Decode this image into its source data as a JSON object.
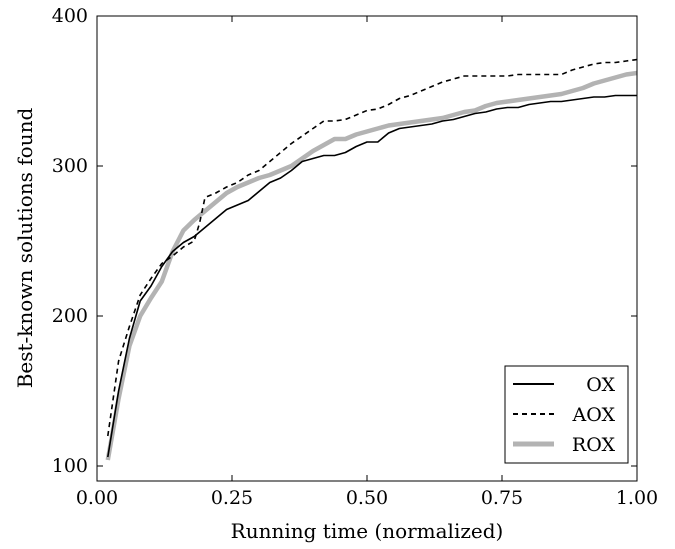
{
  "chart_data": {
    "type": "line",
    "xlabel": "Running time (normalized)",
    "ylabel": "Best-known solutions found",
    "xlim": [
      0,
      1
    ],
    "ylim": [
      90,
      400
    ],
    "x_ticks": [
      "0.00",
      "0.25",
      "0.50",
      "0.75",
      "1.00"
    ],
    "y_ticks": [
      "100",
      "200",
      "300",
      "400"
    ],
    "grid": false,
    "legend_position": "bottom-right",
    "series": [
      {
        "name": "OX",
        "style": "solid",
        "color": "#000000",
        "x": [
          0.02,
          0.04,
          0.06,
          0.08,
          0.1,
          0.12,
          0.14,
          0.16,
          0.18,
          0.2,
          0.22,
          0.24,
          0.26,
          0.28,
          0.3,
          0.32,
          0.34,
          0.36,
          0.38,
          0.4,
          0.42,
          0.44,
          0.46,
          0.48,
          0.5,
          0.52,
          0.54,
          0.56,
          0.58,
          0.6,
          0.62,
          0.64,
          0.66,
          0.68,
          0.7,
          0.72,
          0.74,
          0.76,
          0.78,
          0.8,
          0.82,
          0.84,
          0.86,
          0.88,
          0.9,
          0.92,
          0.94,
          0.96,
          0.98,
          1.0
        ],
        "values": [
          106,
          150,
          185,
          210,
          220,
          233,
          243,
          249,
          253,
          259,
          265,
          271,
          274,
          277,
          283,
          289,
          292,
          297,
          303,
          305,
          307,
          307,
          309,
          313,
          316,
          316,
          322,
          325,
          326,
          327,
          328,
          330,
          331,
          333,
          335,
          336,
          338,
          339,
          339,
          341,
          342,
          343,
          343,
          344,
          345,
          346,
          346,
          347,
          347,
          347
        ]
      },
      {
        "name": "AOX",
        "style": "dashed",
        "color": "#000000",
        "x": [
          0.02,
          0.04,
          0.06,
          0.08,
          0.1,
          0.12,
          0.14,
          0.16,
          0.18,
          0.19,
          0.2,
          0.22,
          0.24,
          0.26,
          0.28,
          0.3,
          0.32,
          0.34,
          0.36,
          0.38,
          0.4,
          0.42,
          0.44,
          0.46,
          0.48,
          0.5,
          0.52,
          0.54,
          0.56,
          0.58,
          0.6,
          0.62,
          0.64,
          0.66,
          0.68,
          0.7,
          0.72,
          0.74,
          0.76,
          0.78,
          0.8,
          0.82,
          0.84,
          0.86,
          0.88,
          0.9,
          0.92,
          0.94,
          0.96,
          0.98,
          1.0
        ],
        "values": [
          120,
          170,
          193,
          214,
          225,
          235,
          240,
          246,
          250,
          262,
          279,
          282,
          286,
          289,
          294,
          297,
          303,
          309,
          315,
          320,
          325,
          330,
          330,
          331,
          334,
          337,
          338,
          341,
          345,
          347,
          350,
          353,
          356,
          358,
          360,
          360,
          360,
          360,
          360,
          361,
          361,
          361,
          361,
          361,
          364,
          366,
          368,
          369,
          369,
          370,
          371
        ]
      },
      {
        "name": "ROX",
        "style": "solid-thick",
        "color": "#b3b3b3",
        "x": [
          0.02,
          0.04,
          0.06,
          0.08,
          0.1,
          0.12,
          0.14,
          0.16,
          0.18,
          0.2,
          0.22,
          0.24,
          0.26,
          0.28,
          0.3,
          0.32,
          0.34,
          0.36,
          0.38,
          0.4,
          0.42,
          0.44,
          0.46,
          0.48,
          0.5,
          0.52,
          0.54,
          0.56,
          0.58,
          0.6,
          0.62,
          0.64,
          0.66,
          0.68,
          0.7,
          0.72,
          0.74,
          0.76,
          0.78,
          0.8,
          0.82,
          0.84,
          0.86,
          0.88,
          0.9,
          0.92,
          0.94,
          0.96,
          0.98,
          1.0
        ],
        "values": [
          104,
          145,
          180,
          200,
          212,
          223,
          243,
          257,
          264,
          270,
          276,
          282,
          286,
          289,
          292,
          294,
          297,
          300,
          305,
          310,
          314,
          318,
          318,
          321,
          323,
          325,
          327,
          328,
          329,
          330,
          331,
          332,
          334,
          336,
          337,
          340,
          342,
          343,
          344,
          345,
          346,
          347,
          348,
          350,
          352,
          355,
          357,
          359,
          361,
          362
        ]
      }
    ]
  }
}
